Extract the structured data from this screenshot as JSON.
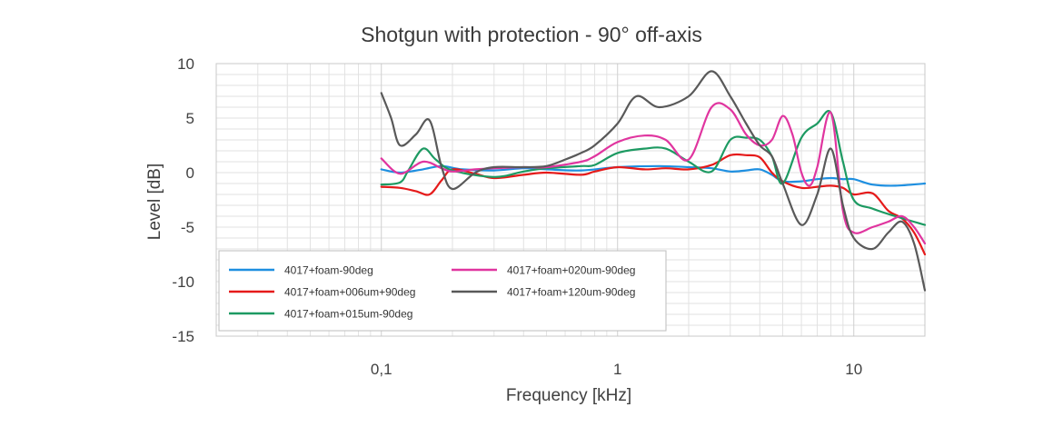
{
  "chart_data": {
    "type": "line",
    "title": "Shotgun with protection - 90° off-axis",
    "xlabel": "Frequency [kHz]",
    "ylabel": "Level [dB]",
    "xscale": "log",
    "xlim": [
      0.02,
      20
    ],
    "ylim": [
      -15,
      10
    ],
    "x_ticks": [
      {
        "value": 0.1,
        "label": "0,1"
      },
      {
        "value": 1,
        "label": "1"
      },
      {
        "value": 10,
        "label": "10"
      }
    ],
    "y_ticks": [
      {
        "value": 10,
        "label": "10"
      },
      {
        "value": 5,
        "label": "5"
      },
      {
        "value": 0,
        "label": "0"
      },
      {
        "value": -5,
        "label": "-5"
      },
      {
        "value": -10,
        "label": "-10"
      },
      {
        "value": -15,
        "label": "-15"
      }
    ],
    "grid": true,
    "legend_position": "bottom-left",
    "series": [
      {
        "name": "4017+foam-90deg",
        "color": "#1e8fe0",
        "points": [
          [
            0.1,
            0.3
          ],
          [
            0.12,
            0.0
          ],
          [
            0.15,
            0.3
          ],
          [
            0.18,
            0.6
          ],
          [
            0.22,
            0.3
          ],
          [
            0.3,
            0.2
          ],
          [
            0.4,
            0.4
          ],
          [
            0.5,
            0.3
          ],
          [
            0.7,
            0.2
          ],
          [
            1.0,
            0.5
          ],
          [
            1.5,
            0.6
          ],
          [
            2.0,
            0.5
          ],
          [
            2.5,
            0.4
          ],
          [
            3.0,
            0.1
          ],
          [
            3.5,
            0.2
          ],
          [
            4.0,
            0.3
          ],
          [
            4.5,
            -0.2
          ],
          [
            5.0,
            -0.8
          ],
          [
            6.0,
            -0.8
          ],
          [
            7.0,
            -0.6
          ],
          [
            8.0,
            -0.5
          ],
          [
            9.0,
            -0.6
          ],
          [
            10.0,
            -0.6
          ],
          [
            12.0,
            -1.1
          ],
          [
            15.0,
            -1.2
          ],
          [
            20.0,
            -1.0
          ]
        ]
      },
      {
        "name": "4017+foam+006um+90deg",
        "color": "#e51a1a",
        "points": [
          [
            0.1,
            -1.3
          ],
          [
            0.12,
            -1.4
          ],
          [
            0.14,
            -1.7
          ],
          [
            0.16,
            -2.0
          ],
          [
            0.18,
            -0.7
          ],
          [
            0.2,
            0.3
          ],
          [
            0.25,
            -0.1
          ],
          [
            0.3,
            -0.5
          ],
          [
            0.4,
            -0.2
          ],
          [
            0.5,
            0.0
          ],
          [
            0.7,
            -0.2
          ],
          [
            0.8,
            0.1
          ],
          [
            1.0,
            0.5
          ],
          [
            1.3,
            0.3
          ],
          [
            1.6,
            0.4
          ],
          [
            2.0,
            0.3
          ],
          [
            2.5,
            0.7
          ],
          [
            3.0,
            1.6
          ],
          [
            3.5,
            1.6
          ],
          [
            4.0,
            1.4
          ],
          [
            4.5,
            0.0
          ],
          [
            5.0,
            -0.8
          ],
          [
            6.0,
            -1.4
          ],
          [
            7.0,
            -1.3
          ],
          [
            8.0,
            -1.2
          ],
          [
            9.0,
            -1.4
          ],
          [
            10.0,
            -2.0
          ],
          [
            12.0,
            -1.9
          ],
          [
            14.0,
            -3.5
          ],
          [
            16.0,
            -4.2
          ],
          [
            18.0,
            -5.5
          ],
          [
            20.0,
            -7.5
          ]
        ]
      },
      {
        "name": "4017+foam+015um-90deg",
        "color": "#1d9a62",
        "points": [
          [
            0.1,
            -1.1
          ],
          [
            0.12,
            -0.9
          ],
          [
            0.13,
            0.2
          ],
          [
            0.15,
            2.2
          ],
          [
            0.17,
            1.2
          ],
          [
            0.2,
            0.2
          ],
          [
            0.3,
            -0.4
          ],
          [
            0.4,
            0.1
          ],
          [
            0.5,
            0.4
          ],
          [
            0.7,
            0.6
          ],
          [
            0.8,
            0.7
          ],
          [
            1.0,
            1.8
          ],
          [
            1.3,
            2.2
          ],
          [
            1.6,
            2.2
          ],
          [
            2.0,
            1.0
          ],
          [
            2.5,
            0.1
          ],
          [
            3.0,
            3.0
          ],
          [
            3.5,
            3.2
          ],
          [
            4.0,
            3.0
          ],
          [
            4.5,
            1.5
          ],
          [
            5.0,
            -1.0
          ],
          [
            6.0,
            3.2
          ],
          [
            7.0,
            4.5
          ],
          [
            8.0,
            5.5
          ],
          [
            9.0,
            1.0
          ],
          [
            10.0,
            -2.5
          ],
          [
            12.0,
            -3.3
          ],
          [
            15.0,
            -4.0
          ],
          [
            20.0,
            -4.8
          ]
        ]
      },
      {
        "name": "4017+foam+020um-90deg",
        "color": "#e0359f",
        "points": [
          [
            0.1,
            1.3
          ],
          [
            0.12,
            -0.1
          ],
          [
            0.15,
            1.0
          ],
          [
            0.18,
            0.4
          ],
          [
            0.2,
            0.1
          ],
          [
            0.25,
            0.3
          ],
          [
            0.3,
            0.4
          ],
          [
            0.4,
            0.5
          ],
          [
            0.5,
            0.5
          ],
          [
            0.7,
            1.0
          ],
          [
            0.8,
            1.5
          ],
          [
            1.0,
            2.8
          ],
          [
            1.3,
            3.4
          ],
          [
            1.6,
            3.0
          ],
          [
            2.0,
            1.2
          ],
          [
            2.5,
            6.0
          ],
          [
            3.0,
            5.8
          ],
          [
            3.5,
            3.5
          ],
          [
            4.0,
            2.5
          ],
          [
            4.5,
            3.0
          ],
          [
            5.0,
            5.2
          ],
          [
            5.5,
            3.5
          ],
          [
            6.0,
            0.0
          ],
          [
            6.5,
            -1.2
          ],
          [
            7.0,
            0.5
          ],
          [
            8.0,
            5.5
          ],
          [
            9.0,
            -3.5
          ],
          [
            10.0,
            -5.5
          ],
          [
            12.0,
            -5.0
          ],
          [
            14.0,
            -4.5
          ],
          [
            16.0,
            -4.0
          ],
          [
            18.0,
            -5.0
          ],
          [
            20.0,
            -6.5
          ]
        ]
      },
      {
        "name": "4017+foam+120um-90deg",
        "color": "#595959",
        "points": [
          [
            0.1,
            7.3
          ],
          [
            0.11,
            5.0
          ],
          [
            0.12,
            2.5
          ],
          [
            0.14,
            3.5
          ],
          [
            0.16,
            4.8
          ],
          [
            0.18,
            0.5
          ],
          [
            0.2,
            -1.5
          ],
          [
            0.25,
            0.0
          ],
          [
            0.3,
            0.5
          ],
          [
            0.4,
            0.5
          ],
          [
            0.5,
            0.6
          ],
          [
            0.6,
            1.2
          ],
          [
            0.7,
            1.8
          ],
          [
            0.8,
            2.5
          ],
          [
            1.0,
            4.5
          ],
          [
            1.2,
            7.0
          ],
          [
            1.5,
            6.0
          ],
          [
            2.0,
            7.0
          ],
          [
            2.5,
            9.3
          ],
          [
            3.0,
            7.0
          ],
          [
            3.5,
            4.5
          ],
          [
            4.0,
            2.5
          ],
          [
            4.5,
            1.5
          ],
          [
            5.0,
            -1.0
          ],
          [
            6.0,
            -4.8
          ],
          [
            7.0,
            -2.0
          ],
          [
            8.0,
            2.2
          ],
          [
            9.0,
            -3.0
          ],
          [
            10.0,
            -6.0
          ],
          [
            12.0,
            -7.0
          ],
          [
            14.0,
            -5.5
          ],
          [
            16.0,
            -4.5
          ],
          [
            18.0,
            -6.5
          ],
          [
            20.0,
            -10.8
          ]
        ]
      }
    ]
  }
}
